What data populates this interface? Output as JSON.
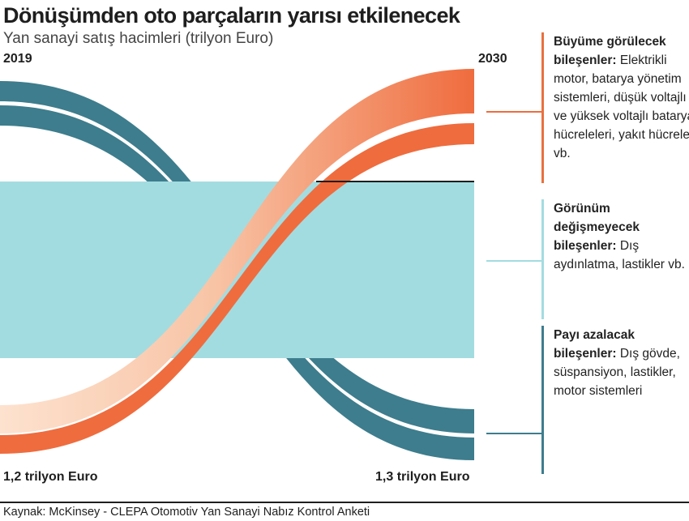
{
  "title": "Dönüşümden oto parçaların yarısı etkilenecek",
  "subtitle": "Yan sanayi satış hacimleri (trilyon Euro)",
  "chart_data": {
    "type": "sankey",
    "title": "Dönüşümden oto parçaların yarısı etkilenecek",
    "subtitle": "Yan sanayi satış hacimleri (trilyon Euro)",
    "x": [
      "2019",
      "2030"
    ],
    "totals": [
      "1,2 trilyon Euro",
      "1,3  trilyon Euro"
    ],
    "total_values": [
      1.2,
      1.3
    ],
    "series": [
      {
        "name": "Büyüme görülecek bileşenler",
        "values": [
          0.04,
          0.26
        ],
        "color": "#ef6c3e"
      },
      {
        "name": "Görünüm değişmeyecek bileşenler",
        "values": [
          0.58,
          0.58
        ],
        "color": "#a3dce0"
      },
      {
        "name": "Payı azalacak bileşenler",
        "values": [
          0.58,
          0.46
        ],
        "color": "#3d7d8d"
      }
    ]
  },
  "legend": [
    {
      "title": "Büyüme görülecek bileşenler:",
      "text": "Elektrikli motor, batarya yönetim sistemleri, düşük voltajlı ve yüksek voltajlı batarya hücreleleri, yakıt hücreleri vb."
    },
    {
      "title": "Görünüm değişmeyecek bileşenler:",
      "text": "Dış aydınlatma, lastikler vb."
    },
    {
      "title": "Payı azalacak bileşenler:",
      "text": "Dış gövde, süspansiyon, lastikler, motor sistemleri"
    }
  ],
  "source": "Kaynak: McKinsey - CLEPA Otomotiv Yan Sanayi Nabız Kontrol Anketi",
  "colors": {
    "grow": "#ef6c3e",
    "grow_light": "#fbd9c3",
    "same": "#a3dce0",
    "shrink": "#3d7d8d",
    "text": "#1e1e1e"
  }
}
